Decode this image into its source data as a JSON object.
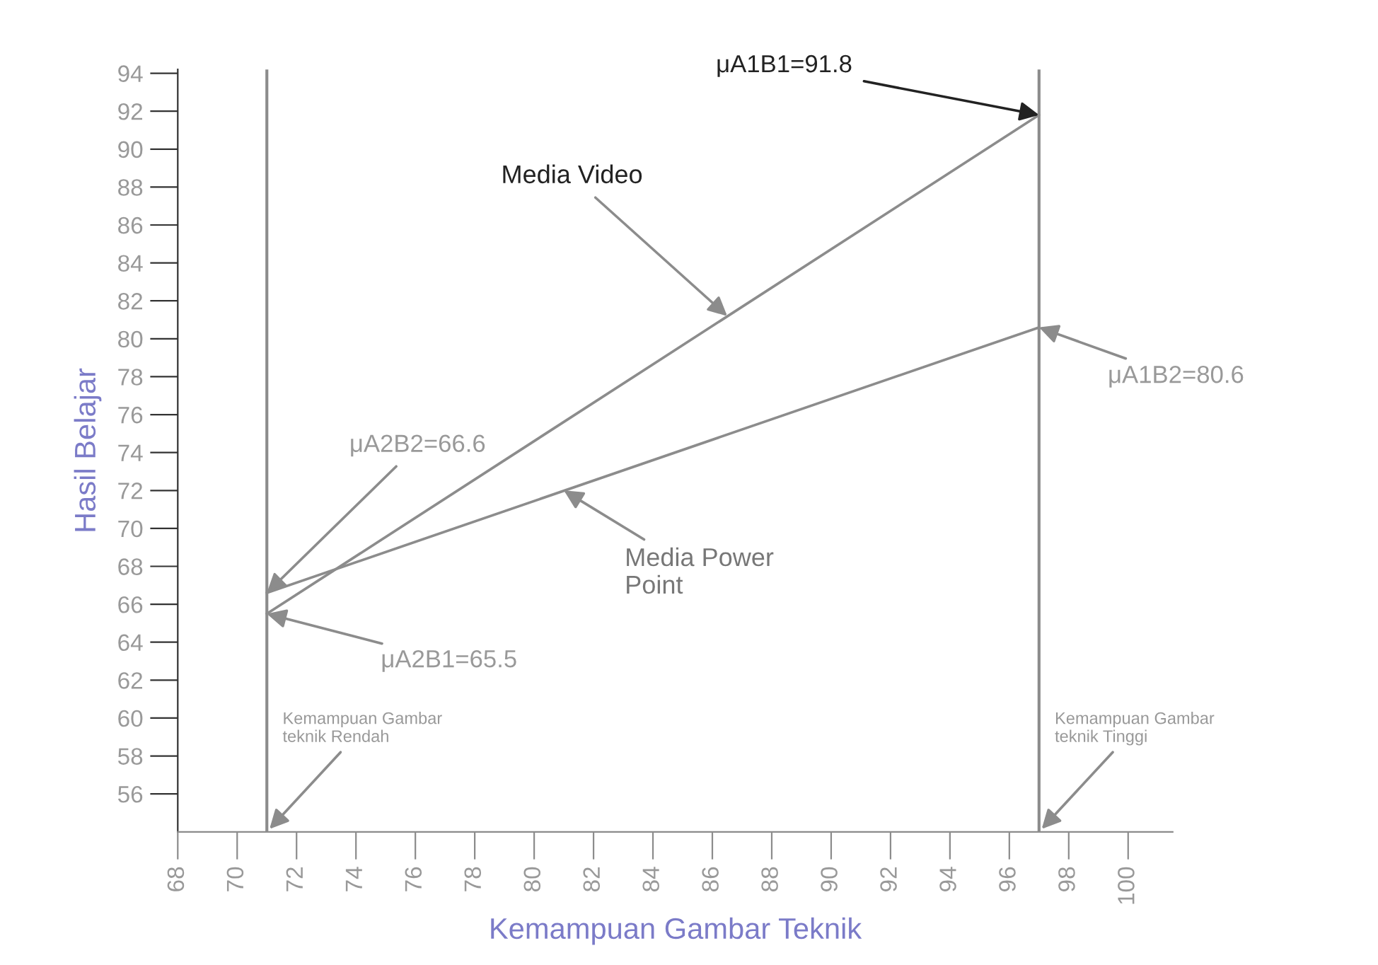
{
  "chart_data": {
    "type": "line",
    "xlabel": "Kemampuan Gambar Teknik",
    "ylabel": "Hasil Belajar",
    "x": [
      71,
      97
    ],
    "series": [
      {
        "color": "#8c8c8c",
        "values": [
          65.5,
          91.8
        ]
      },
      {
        "color": "#8c8c8c",
        "values": [
          66.6,
          80.6
        ]
      }
    ],
    "xlim": [
      68,
      101.5
    ],
    "ylim": [
      54,
      94.2
    ],
    "xticks": [
      68,
      70,
      72,
      74,
      76,
      78,
      80,
      82,
      84,
      86,
      88,
      90,
      92,
      94,
      96,
      98,
      100
    ],
    "yticks": [
      56,
      58,
      60,
      62,
      64,
      66,
      68,
      70,
      72,
      74,
      76,
      78,
      80,
      82,
      84,
      86,
      88,
      90,
      92,
      94
    ],
    "ref_lines": [
      {
        "axis": "x",
        "value": 71,
        "label": "Kemampuan Gambar\nteknik Rendah",
        "color": "#8c8c8c"
      },
      {
        "axis": "x",
        "value": 97,
        "label": "Kemampuan Gambar\nteknik Tinggi",
        "color": "#8c8c8c"
      }
    ],
    "annotations": [
      {
        "text": "μA1B1=91.8",
        "x": 97,
        "y": 91.8
      },
      {
        "text": "μA1B2=80.6",
        "x": 97,
        "y": 80.6
      },
      {
        "text": "μA2B2=66.6",
        "x": 71,
        "y": 66.6
      },
      {
        "text": "μA2B1=65.5",
        "x": 71,
        "y": 65.5
      },
      {
        "text": "Media Video",
        "x": 86.5,
        "y": 81.2
      },
      {
        "text": "Media Power\nPoint",
        "x": 81,
        "y": 72.0
      }
    ],
    "grid": false,
    "legend": false,
    "marker": "none",
    "line_style": "solid"
  }
}
